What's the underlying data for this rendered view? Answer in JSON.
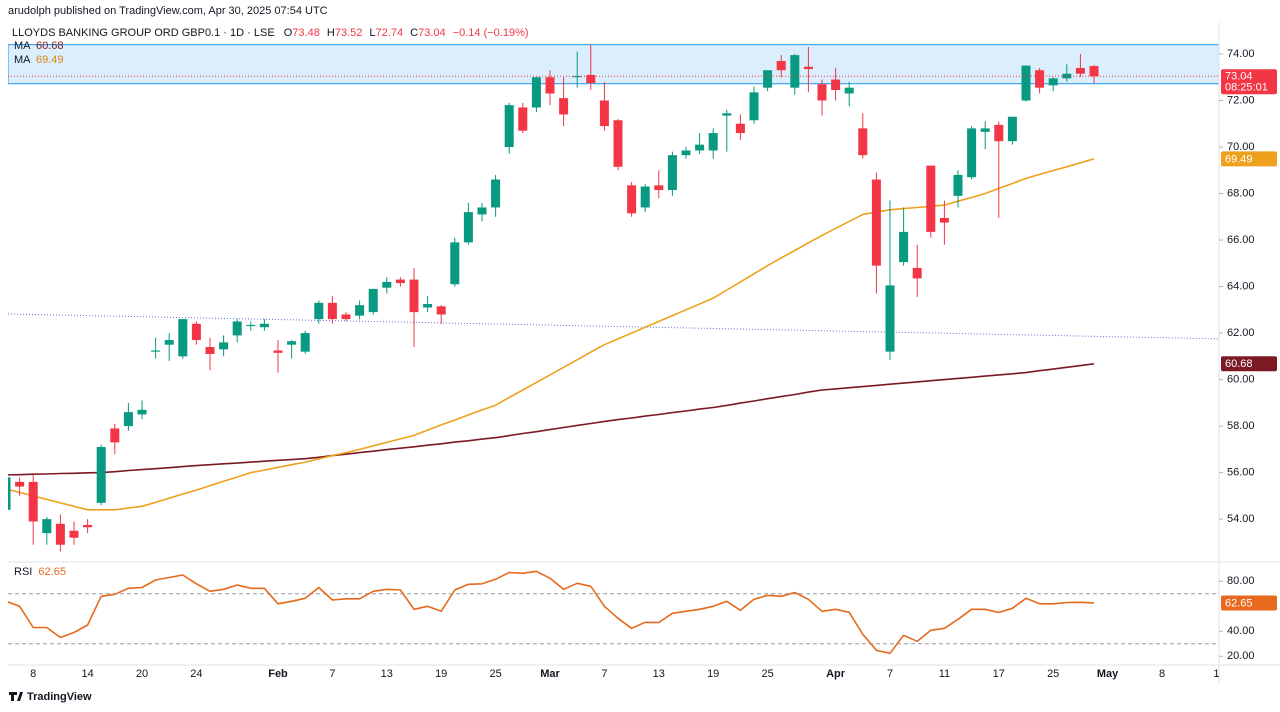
{
  "header": {
    "published": "arudolph published on TradingView.com, Apr 30, 2025 07:54 UTC",
    "symbol": "LLOYDS BANKING GROUP ORD GBP0.1 · 1D · LSE",
    "quote_labels": [
      "O",
      "H",
      "L",
      "C"
    ],
    "change": "−0.14 (−0.19%)",
    "countdown": "08:25:01"
  },
  "footer": "TradingView",
  "chart_data": {
    "type": "candlestick",
    "categories": [
      null,
      null,
      "8",
      null,
      null,
      null,
      "14",
      null,
      null,
      null,
      "20",
      null,
      null,
      null,
      "24",
      null,
      null,
      null,
      null,
      null,
      "Feb",
      null,
      null,
      null,
      "7",
      null,
      null,
      null,
      "13",
      null,
      null,
      null,
      "19",
      null,
      null,
      null,
      "25",
      null,
      null,
      null,
      "Mar",
      null,
      null,
      null,
      "7",
      null,
      null,
      null,
      "13",
      null,
      null,
      null,
      "19",
      null,
      null,
      null,
      "25",
      null,
      null,
      null,
      null,
      "Apr",
      null,
      null,
      null,
      "7",
      null,
      null,
      null,
      "11",
      null,
      null,
      null,
      "17",
      null,
      null,
      null,
      "25",
      null,
      null,
      null,
      "May",
      null,
      null,
      null,
      "8",
      null,
      null,
      null,
      "1"
    ],
    "open": [
      54.4,
      55.6,
      55.6,
      53.4,
      53.8,
      53.5,
      53.75,
      54.7,
      57.9,
      58.0,
      58.5,
      61.2,
      61.5,
      61.0,
      62.4,
      61.4,
      61.3,
      61.9,
      62.3,
      62.25,
      61.25,
      61.5,
      61.2,
      62.6,
      63.3,
      62.8,
      62.75,
      62.9,
      63.95,
      64.3,
      64.3,
      63.1,
      63.15,
      64.1,
      65.9,
      67.1,
      67.4,
      70.0,
      71.7,
      71.7,
      73.0,
      72.1,
      73.0,
      73.1,
      72.0,
      71.15,
      68.35,
      67.4,
      68.35,
      68.15,
      69.65,
      69.85,
      69.85,
      71.35,
      71.0,
      71.15,
      72.55,
      73.7,
      72.55,
      73.45,
      72.7,
      72.9,
      72.3,
      70.8,
      68.6,
      61.2,
      65.05,
      64.8,
      69.2,
      66.95,
      67.9,
      68.7,
      70.65,
      70.95,
      70.25,
      72.0,
      73.3,
      72.65,
      72.95,
      73.4,
      73.48,
      null,
      null,
      null,
      null,
      null,
      null,
      null,
      null,
      null
    ],
    "high": [
      55.9,
      55.8,
      55.9,
      54.1,
      54.2,
      53.9,
      54.0,
      57.2,
      58.1,
      59.0,
      59.1,
      61.8,
      62.0,
      62.6,
      62.5,
      61.8,
      61.9,
      62.6,
      62.5,
      62.6,
      61.7,
      61.7,
      62.1,
      63.4,
      63.6,
      62.9,
      63.4,
      63.9,
      64.4,
      64.4,
      64.8,
      63.6,
      63.2,
      66.1,
      67.6,
      67.6,
      68.8,
      71.9,
      71.9,
      73.0,
      73.3,
      73.0,
      74.1,
      74.4,
      72.8,
      71.2,
      68.5,
      68.4,
      69.0,
      69.8,
      70.0,
      70.6,
      70.8,
      71.6,
      71.4,
      72.6,
      73.3,
      73.95,
      74.0,
      74.3,
      72.9,
      73.4,
      72.8,
      71.45,
      68.9,
      67.7,
      67.4,
      65.8,
      69.2,
      67.7,
      69.0,
      70.9,
      71.1,
      71.1,
      71.3,
      73.5,
      73.4,
      73.0,
      73.55,
      74.0,
      73.52,
      null,
      null,
      null,
      null,
      null,
      null,
      null,
      null,
      null
    ],
    "low": [
      54.3,
      55.0,
      52.9,
      52.9,
      52.6,
      52.9,
      53.4,
      54.6,
      56.8,
      57.8,
      58.3,
      60.9,
      60.8,
      60.9,
      61.5,
      60.4,
      61.0,
      61.6,
      62.1,
      62.1,
      60.3,
      60.9,
      61.1,
      62.4,
      62.4,
      62.5,
      62.6,
      62.8,
      63.7,
      64.0,
      61.4,
      62.9,
      62.4,
      64.0,
      65.8,
      66.8,
      67.0,
      69.7,
      70.6,
      71.5,
      71.8,
      70.9,
      72.55,
      72.45,
      70.7,
      69.0,
      67.0,
      67.2,
      67.8,
      67.9,
      69.5,
      69.7,
      69.5,
      69.8,
      70.3,
      71.0,
      72.4,
      73.0,
      72.25,
      72.35,
      71.35,
      72.0,
      71.75,
      69.5,
      63.7,
      60.85,
      64.9,
      63.55,
      66.1,
      65.8,
      67.4,
      68.6,
      69.9,
      66.95,
      70.1,
      71.95,
      72.3,
      72.4,
      72.8,
      73.0,
      72.74,
      null,
      null,
      null,
      null,
      null,
      null,
      null,
      null,
      null
    ],
    "close": [
      55.8,
      55.4,
      53.9,
      54.0,
      52.9,
      53.2,
      53.65,
      57.1,
      57.3,
      58.6,
      58.7,
      61.25,
      61.7,
      62.6,
      61.7,
      61.1,
      61.6,
      62.5,
      62.35,
      62.4,
      61.15,
      61.65,
      62.0,
      63.3,
      62.6,
      62.6,
      63.2,
      63.9,
      64.2,
      64.15,
      62.9,
      63.25,
      62.8,
      65.9,
      67.2,
      67.4,
      68.6,
      71.8,
      70.7,
      73.0,
      72.3,
      71.4,
      73.05,
      72.75,
      70.9,
      69.15,
      67.15,
      68.3,
      68.15,
      69.65,
      69.85,
      70.1,
      70.6,
      71.45,
      70.6,
      72.35,
      73.3,
      73.3,
      73.95,
      73.35,
      72.0,
      72.45,
      72.55,
      69.65,
      64.9,
      64.05,
      66.35,
      64.35,
      66.35,
      66.75,
      68.8,
      70.8,
      70.8,
      70.25,
      71.3,
      73.5,
      72.55,
      72.95,
      73.15,
      73.15,
      73.04,
      null,
      null,
      null,
      null,
      null,
      null,
      null,
      null,
      null
    ],
    "up_color": "#089981",
    "down_color": "#f23645",
    "series": [
      {
        "name": "MA",
        "color": "#7b1a24",
        "values": [
          55.9,
          55.91,
          55.93,
          55.94,
          55.96,
          55.97,
          55.99,
          56.0,
          56.04,
          56.09,
          56.13,
          56.17,
          56.21,
          56.26,
          56.3,
          56.34,
          56.38,
          56.41,
          56.45,
          56.49,
          56.53,
          56.56,
          56.6,
          56.66,
          56.73,
          56.79,
          56.86,
          56.92,
          56.99,
          57.05,
          57.11,
          57.18,
          57.24,
          57.31,
          57.37,
          57.44,
          57.5,
          57.59,
          57.68,
          57.76,
          57.85,
          57.94,
          58.03,
          58.11,
          58.2,
          58.28,
          58.35,
          58.43,
          58.5,
          58.58,
          58.65,
          58.73,
          58.8,
          58.89,
          58.99,
          59.08,
          59.18,
          59.27,
          59.36,
          59.46,
          59.55,
          59.6,
          59.65,
          59.7,
          59.75,
          59.8,
          59.85,
          59.9,
          59.95,
          60.0,
          60.05,
          60.1,
          60.15,
          60.2,
          60.25,
          60.3,
          60.38,
          60.45,
          60.53,
          60.6,
          60.68,
          null,
          null,
          null,
          null,
          null,
          null,
          null,
          null,
          null
        ]
      },
      {
        "name": "MA",
        "color": "#eea11c",
        "values": [
          55.3,
          55.15,
          55.0,
          54.85,
          54.7,
          54.55,
          54.4,
          54.4,
          54.4,
          54.48,
          54.55,
          54.72,
          54.9,
          55.08,
          55.25,
          55.44,
          55.63,
          55.81,
          56.0,
          56.11,
          56.23,
          56.34,
          56.45,
          56.59,
          56.73,
          56.86,
          57.0,
          57.15,
          57.3,
          57.45,
          57.6,
          57.83,
          58.05,
          58.26,
          58.48,
          58.69,
          58.9,
          59.23,
          59.55,
          59.88,
          60.2,
          60.53,
          60.85,
          61.18,
          61.5,
          61.75,
          62.0,
          62.25,
          62.5,
          62.75,
          63.0,
          63.25,
          63.5,
          63.85,
          64.2,
          64.55,
          64.9,
          65.23,
          65.55,
          65.88,
          66.2,
          66.5,
          66.8,
          67.1,
          67.2,
          67.3,
          67.35,
          67.4,
          67.45,
          67.5,
          67.67,
          67.83,
          68.0,
          68.22,
          68.43,
          68.65,
          68.82,
          68.99,
          69.15,
          69.32,
          69.49,
          null,
          null,
          null,
          null,
          null,
          null,
          null,
          null,
          null
        ]
      }
    ],
    "range_box": [
      72.72,
      74.4
    ],
    "trend_line": [
      62.82,
      61.75
    ],
    "ylim": [
      52.2,
      74.6
    ],
    "yticks": [
      {
        "value": 54,
        "label": "54.00"
      },
      {
        "value": 56,
        "label": "56.00"
      },
      {
        "value": 58,
        "label": "58.00"
      },
      {
        "value": 60,
        "label": "60.00"
      },
      {
        "value": 62,
        "label": "62.00"
      },
      {
        "value": 64,
        "label": "64.00"
      },
      {
        "value": 66,
        "label": "66.00"
      },
      {
        "value": 68,
        "label": "68.00"
      },
      {
        "value": 70,
        "label": "70.00"
      },
      {
        "value": 72,
        "label": "72.00"
      },
      {
        "value": 74,
        "label": "74.00"
      }
    ],
    "grid": false,
    "rsi": {
      "name": "RSI",
      "color": "#e6691d",
      "values": [
        64,
        60,
        43,
        43,
        35,
        39,
        45,
        68,
        69.6,
        74.4,
        75,
        81,
        83,
        85,
        78,
        72,
        73.6,
        77,
        74.4,
        74.4,
        62,
        64,
        66.4,
        75,
        65,
        66,
        66,
        72,
        73.6,
        73,
        57.6,
        60,
        56,
        73,
        77.6,
        78,
        81.6,
        87,
        86.4,
        88,
        82.4,
        73.6,
        78.4,
        76,
        60,
        50.4,
        42.4,
        47.2,
        47,
        54.4,
        56,
        57.6,
        60,
        64,
        56.8,
        65.6,
        68.8,
        68,
        71,
        65.6,
        56,
        57.6,
        55.2,
        37.6,
        24.8,
        22.4,
        36.8,
        32,
        40.8,
        42.4,
        49.6,
        57.6,
        57.6,
        55,
        58.4,
        66.4,
        62,
        62,
        63,
        63.2,
        62.65,
        null,
        null,
        null,
        null,
        null,
        null,
        null,
        null,
        null
      ],
      "bands": [
        70,
        30
      ],
      "ylim": [
        13,
        93
      ],
      "yticks": [
        {
          "value": 20,
          "label": "20.00"
        },
        {
          "value": 40,
          "label": "40.00"
        },
        {
          "value": 80,
          "label": "80.00"
        }
      ]
    }
  }
}
